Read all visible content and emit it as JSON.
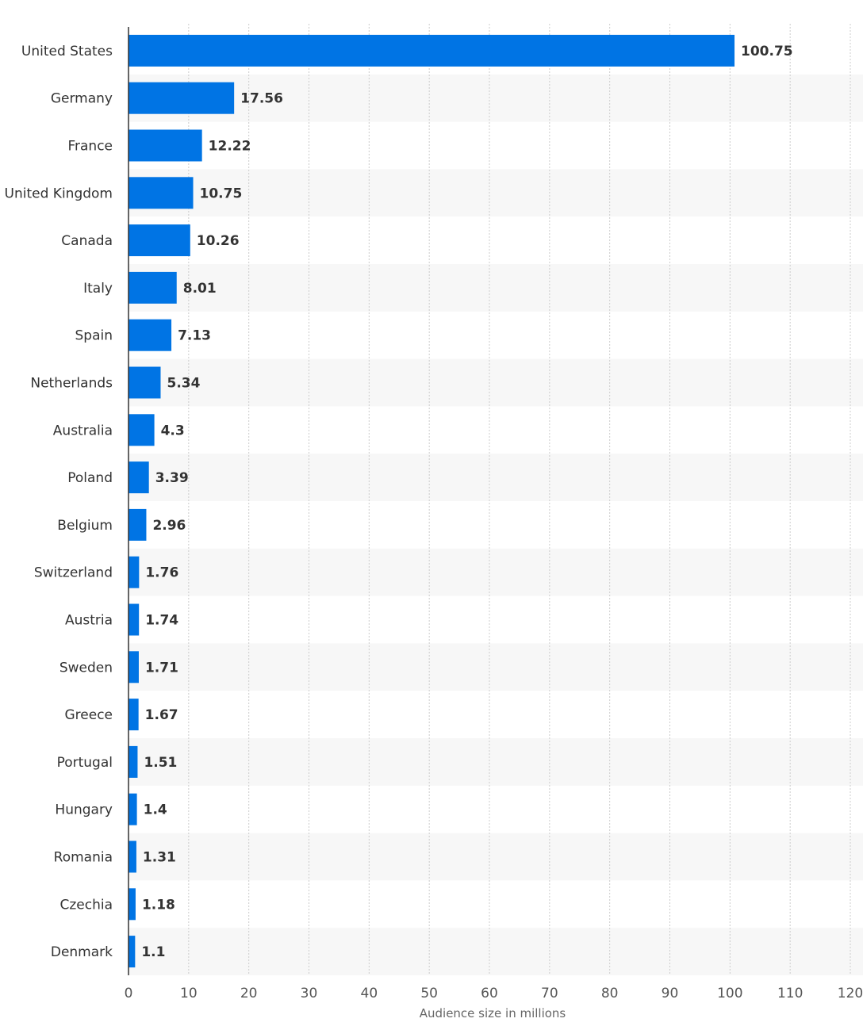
{
  "chart_data": {
    "type": "bar",
    "orientation": "horizontal",
    "categories": [
      "United States",
      "Germany",
      "France",
      "United Kingdom",
      "Canada",
      "Italy",
      "Spain",
      "Netherlands",
      "Australia",
      "Poland",
      "Belgium",
      "Switzerland",
      "Austria",
      "Sweden",
      "Greece",
      "Portugal",
      "Hungary",
      "Romania",
      "Czechia",
      "Denmark"
    ],
    "values": [
      100.75,
      17.56,
      12.22,
      10.75,
      10.26,
      8.01,
      7.13,
      5.34,
      4.3,
      3.39,
      2.96,
      1.76,
      1.74,
      1.71,
      1.67,
      1.51,
      1.4,
      1.31,
      1.18,
      1.1
    ],
    "value_labels": [
      "100.75",
      "17.56",
      "12.22",
      "10.75",
      "10.26",
      "8.01",
      "7.13",
      "5.34",
      "4.3",
      "3.39",
      "2.96",
      "1.76",
      "1.74",
      "1.71",
      "1.67",
      "1.51",
      "1.4",
      "1.31",
      "1.18",
      "1.1"
    ],
    "xlim": [
      0,
      120
    ],
    "x_ticks": [
      0,
      10,
      20,
      30,
      40,
      50,
      60,
      70,
      80,
      90,
      100,
      110,
      120
    ],
    "x_tick_labels": [
      "0",
      "10",
      "20",
      "30",
      "40",
      "50",
      "60",
      "70",
      "80",
      "90",
      "100",
      "110",
      "120"
    ],
    "xlabel": "Audience size in millions",
    "ylabel": "",
    "title": "",
    "grid": true,
    "legend": "none",
    "colors": {
      "bar": "#0074e4",
      "band": "#f7f7f7",
      "grid": "#cccccc",
      "axis": "#333333"
    }
  }
}
